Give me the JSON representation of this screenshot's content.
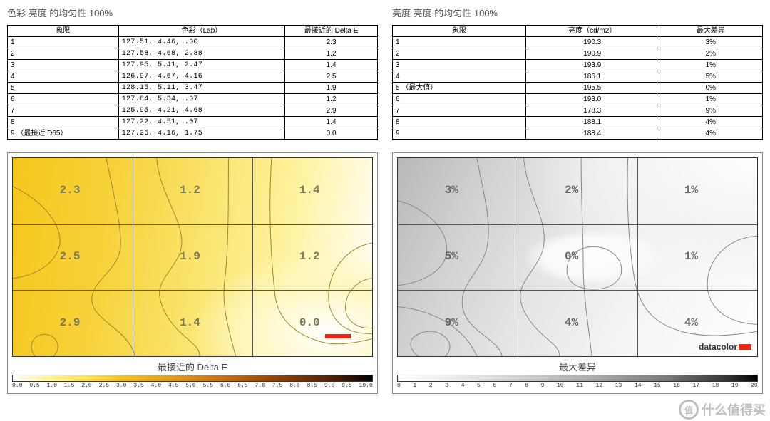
{
  "left": {
    "title": "色彩 亮度 的均匀性 100%",
    "table": {
      "columns": [
        "象限",
        "色彩（Lab）",
        "最接近的 Delta E"
      ],
      "rows": [
        {
          "q": "1",
          "lab": "127.51,  4.46,   .00",
          "de": "2.3"
        },
        {
          "q": "2",
          "lab": "127.58,  4.68,  2.88",
          "de": "1.2"
        },
        {
          "q": "3",
          "lab": "127.95,  5.41,  2.47",
          "de": "1.4"
        },
        {
          "q": "4",
          "lab": "126.97,  4.67,  4.16",
          "de": "2.5"
        },
        {
          "q": "5",
          "lab": "128.15,  5.11,  3.47",
          "de": "1.9"
        },
        {
          "q": "6",
          "lab": "127.84,  5.34,   .07",
          "de": "1.2"
        },
        {
          "q": "7",
          "lab": "125.95,  4.21,  4.68",
          "de": "2.9"
        },
        {
          "q": "8",
          "lab": "127.22,  4.51,   .07",
          "de": "1.4"
        },
        {
          "q": "9 （最接近 D65）",
          "lab": "127.26,  4.16,  1.75",
          "de": "0.0"
        }
      ],
      "col_widths_pct": [
        30,
        45,
        25
      ]
    },
    "heatmap": {
      "type": "heatmap",
      "caption": "最接近的 Delta E",
      "grid_values": [
        [
          "2.3",
          "1.2",
          "1.4"
        ],
        [
          "2.5",
          "1.9",
          "1.2"
        ],
        [
          "2.9",
          "1.4",
          "0.0"
        ]
      ],
      "label_color": "#7a7a55",
      "label_fontsize": 16,
      "grid_line_color": "#555555",
      "contour_color": "#9a8a30",
      "background_gradient_css": "radial-gradient(ellipse 55% 60% at 88% 88%, #ffffff 0%, #fff7c0 40%, transparent 70%), linear-gradient(100deg, #f4c71a 0%, #f7d23c 28%, #fae36a 50%, #fef29c 72%, #ffffff 100%)",
      "redbar_pos": {
        "right_pct": 6,
        "bottom_pct": 9
      },
      "colorbar": {
        "gradient_css": "linear-gradient(90deg,#ffffff 0%,#fff59a 10%,#ffe24d 20%,#f6c218 30%,#e39a12 45%,#c26a0d 60%,#8d3f09 75%,#4a1e05 90%,#000000 100%)",
        "ticks": [
          "0.0",
          "0.5",
          "1.0",
          "1.5",
          "2.0",
          "2.5",
          "3.0",
          "3.5",
          "4.0",
          "4.5",
          "5.0",
          "5.5",
          "6.0",
          "6.5",
          "7.0",
          "7.5",
          "8.0",
          "8.5",
          "9.0",
          "9.5",
          "10.0"
        ]
      }
    }
  },
  "right": {
    "title": "亮度 亮度 的均匀性 100%",
    "table": {
      "columns": [
        "象限",
        "亮度（cd/m2）",
        "最大差异"
      ],
      "rows": [
        {
          "q": "1",
          "v": "190.3",
          "d": "3%"
        },
        {
          "q": "2",
          "v": "190.9",
          "d": "2%"
        },
        {
          "q": "3",
          "v": "193.9",
          "d": "1%"
        },
        {
          "q": "4",
          "v": "186.1",
          "d": "5%"
        },
        {
          "q": "5 （最大值）",
          "v": "195.5",
          "d": "0%"
        },
        {
          "q": "6",
          "v": "193.0",
          "d": "1%"
        },
        {
          "q": "7",
          "v": "178.3",
          "d": "9%"
        },
        {
          "q": "8",
          "v": "188.1",
          "d": "4%"
        },
        {
          "q": "9",
          "v": "188.4",
          "d": "4%"
        }
      ],
      "col_widths_pct": [
        36,
        36,
        28
      ]
    },
    "heatmap": {
      "type": "heatmap",
      "caption": "最大差异",
      "grid_values": [
        [
          "3%",
          "2%",
          "1%"
        ],
        [
          "5%",
          "0%",
          "1%"
        ],
        [
          "9%",
          "4%",
          "4%"
        ]
      ],
      "label_color": "#666666",
      "label_fontsize": 16,
      "grid_line_color": "#555555",
      "contour_color": "#888888",
      "background_gradient_css": "radial-gradient(ellipse 20% 14% at 55% 50%, #ffffff 0%, #fafafa 70%, transparent 100%), radial-gradient(ellipse 110% 110% at 100% 0%, #ffffff 0%, #f2f2f2 35%, transparent 60%), linear-gradient(115deg, #b8b8b8 0%, #d2d2d2 22%, #e6e6e6 45%, #f5f5f5 70%, #ffffff 100%)",
      "brand": "datacolor",
      "colorbar": {
        "gradient_css": "linear-gradient(90deg,#ffffff 0%,#eeeeee 15%,#cccccc 35%,#aaaaaa 55%,#777777 75%,#333333 92%,#000000 100%)",
        "ticks": [
          "0",
          "1",
          "2",
          "3",
          "4",
          "5",
          "6",
          "7",
          "8",
          "9",
          "10",
          "11",
          "12",
          "13",
          "14",
          "15",
          "16",
          "17",
          "18",
          "19",
          "20"
        ]
      }
    }
  },
  "watermark": "什么值得买"
}
